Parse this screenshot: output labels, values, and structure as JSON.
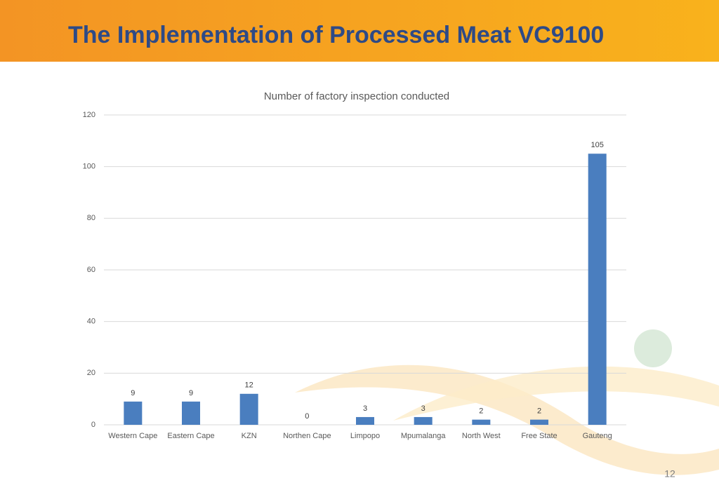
{
  "slide_title": "The Implementation of Processed Meat VC9100",
  "page_number": "12",
  "chart_data": {
    "type": "bar",
    "title": "Number of factory inspection conducted",
    "categories": [
      "Western Cape",
      "Eastern Cape",
      "KZN",
      "Northen Cape",
      "Limpopo",
      "Mpumalanga",
      "North West",
      "Free State",
      "Gauteng"
    ],
    "values": [
      9,
      9,
      12,
      0,
      3,
      3,
      2,
      2,
      105
    ],
    "color": "#4a7ebf",
    "ylim": [
      0,
      120
    ],
    "yticks": [
      0,
      20,
      40,
      60,
      80,
      100,
      120
    ],
    "grid": true,
    "data_labels": true
  }
}
